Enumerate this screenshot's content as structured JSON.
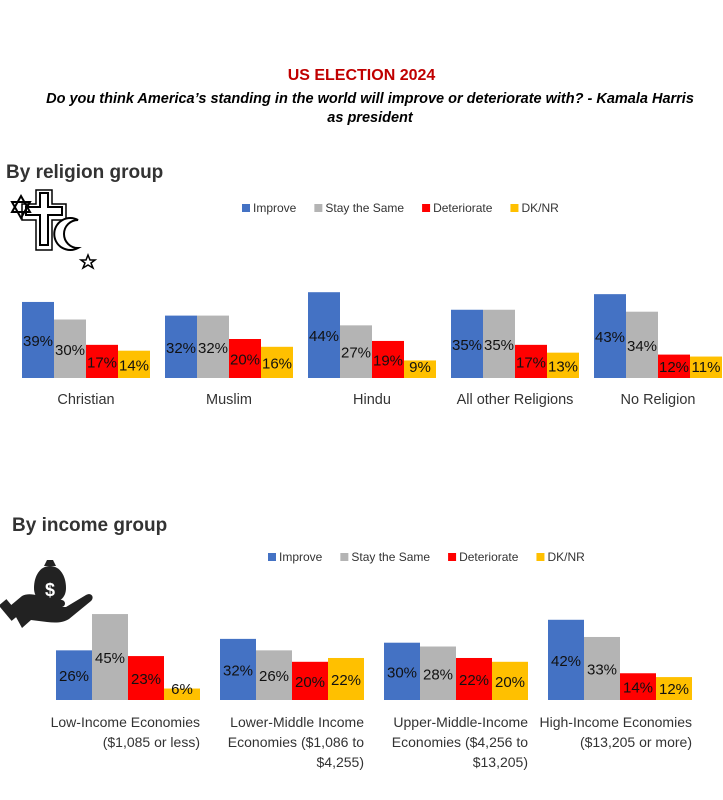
{
  "title": "US ELECTION 2024",
  "subtitle": "Do you think America’s standing in the world will improve or deteriorate with? - Kamala Harris as president",
  "colors": {
    "Improve": "#4472c4",
    "Stay the Same": "#b4b4b4",
    "Deteriorate": "#ff0000",
    "DK/NR": "#ffc000"
  },
  "chart_data": [
    {
      "type": "bar",
      "title": "By religion group",
      "icon": "religion-symbols-icon",
      "legend_position": "top",
      "categories": [
        "Christian",
        "Muslim",
        "Hindu",
        "All other Religions",
        "No Religion"
      ],
      "series": [
        {
          "name": "Improve",
          "values": [
            39,
            32,
            44,
            35,
            43
          ]
        },
        {
          "name": "Stay the Same",
          "values": [
            30,
            32,
            27,
            35,
            34
          ]
        },
        {
          "name": "Deteriorate",
          "values": [
            17,
            20,
            19,
            17,
            12
          ]
        },
        {
          "name": "DK/NR",
          "values": [
            14,
            16,
            9,
            13,
            11
          ]
        }
      ],
      "ylim": [
        0,
        44
      ]
    },
    {
      "type": "bar",
      "title": "By income group",
      "icon": "money-hand-icon",
      "legend_position": "top",
      "categories": [
        [
          "Low-Income Economies",
          "($1,085 or less)"
        ],
        [
          "Lower-Middle Income",
          "Economies ($1,086 to",
          "$4,255)"
        ],
        [
          "Upper-Middle-Income",
          "Economies ($4,256 to",
          "$13,205)"
        ],
        [
          "High-Income Economies",
          "($13,205 or more)"
        ]
      ],
      "series": [
        {
          "name": "Improve",
          "values": [
            26,
            32,
            30,
            42
          ]
        },
        {
          "name": "Stay the Same",
          "values": [
            45,
            26,
            28,
            33
          ]
        },
        {
          "name": "Deteriorate",
          "values": [
            23,
            20,
            22,
            14
          ]
        },
        {
          "name": "DK/NR",
          "values": [
            6,
            22,
            20,
            12
          ]
        }
      ],
      "ylim": [
        0,
        45
      ]
    }
  ]
}
